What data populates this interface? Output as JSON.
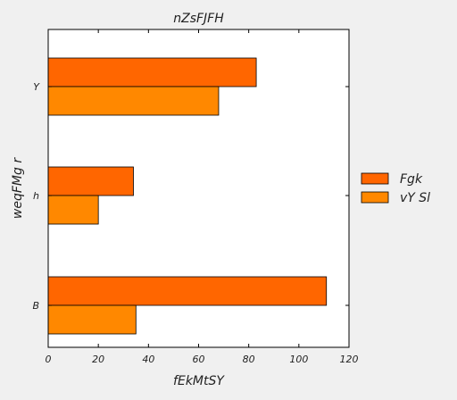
{
  "chart_data": {
    "type": "bar",
    "orientation": "horizontal",
    "title": "nZsFJFH",
    "xlabel": "fEkMtSY",
    "ylabel": "weqFMg r",
    "categories": [
      "B",
      "h",
      "Y"
    ],
    "series": [
      {
        "name": "Fgk",
        "values": [
          111,
          34,
          83
        ],
        "color": "#ff6600"
      },
      {
        "name": "vY Sl",
        "values": [
          35,
          20,
          68
        ],
        "color": "#ff8800"
      }
    ],
    "xlim": [
      0,
      120
    ],
    "xticks": [
      0,
      20,
      40,
      60,
      80,
      100,
      120
    ],
    "grid": false,
    "legend_position": "right"
  }
}
